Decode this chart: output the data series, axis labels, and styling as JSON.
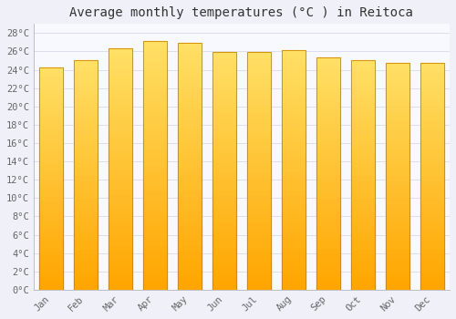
{
  "title": "Average monthly temperatures (°C ) in Reitoca",
  "months": [
    "Jan",
    "Feb",
    "Mar",
    "Apr",
    "May",
    "Jun",
    "Jul",
    "Aug",
    "Sep",
    "Oct",
    "Nov",
    "Dec"
  ],
  "values": [
    24.3,
    25.0,
    26.3,
    27.1,
    26.9,
    25.9,
    25.9,
    26.1,
    25.3,
    25.0,
    24.8,
    24.8
  ],
  "bar_color_top": "#FFE066",
  "bar_color_bottom": "#FFA500",
  "bar_edge_color": "#CC8800",
  "background_color": "#F0F0F8",
  "plot_bg_color": "#F8F8FF",
  "grid_color": "#DDDDEE",
  "ylim": [
    0,
    29
  ],
  "yticks": [
    0,
    2,
    4,
    6,
    8,
    10,
    12,
    14,
    16,
    18,
    20,
    22,
    24,
    26,
    28
  ],
  "ytick_labels": [
    "0°C",
    "2°C",
    "4°C",
    "6°C",
    "8°C",
    "10°C",
    "12°C",
    "14°C",
    "16°C",
    "18°C",
    "20°C",
    "22°C",
    "24°C",
    "26°C",
    "28°C"
  ],
  "title_fontsize": 10,
  "tick_fontsize": 7.5,
  "bar_width": 0.7,
  "n_gradient_steps": 50
}
